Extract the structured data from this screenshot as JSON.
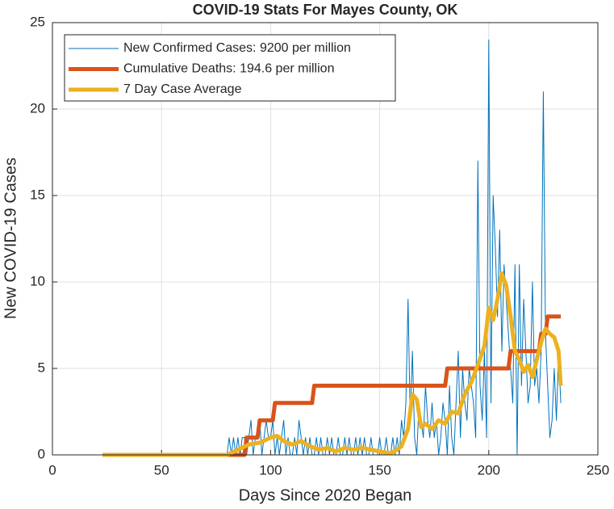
{
  "chart_data": {
    "type": "line",
    "title": "COVID-19 Stats For Mayes County, OK",
    "xlabel": "Days Since 2020 Began",
    "ylabel": "New COVID-19 Cases",
    "xlim": [
      0,
      250
    ],
    "ylim": [
      0,
      25
    ],
    "xticks": [
      0,
      50,
      100,
      150,
      200,
      250
    ],
    "yticks": [
      0,
      5,
      10,
      15,
      20,
      25
    ],
    "grid": true,
    "legend": "upper left",
    "series": [
      {
        "name": "New Confirmed Cases: 9200 per million",
        "color": "#0072BD",
        "x": [
          23,
          80,
          81,
          82,
          83,
          84,
          85,
          86,
          87,
          88,
          89,
          90,
          91,
          92,
          93,
          94,
          95,
          96,
          97,
          98,
          99,
          100,
          101,
          102,
          103,
          104,
          105,
          106,
          107,
          108,
          109,
          110,
          111,
          112,
          113,
          114,
          115,
          116,
          117,
          118,
          119,
          120,
          121,
          122,
          123,
          124,
          125,
          126,
          127,
          128,
          129,
          130,
          131,
          132,
          133,
          134,
          135,
          136,
          137,
          138,
          139,
          140,
          141,
          142,
          143,
          144,
          145,
          146,
          147,
          148,
          149,
          150,
          151,
          152,
          153,
          154,
          155,
          156,
          157,
          158,
          159,
          160,
          161,
          162,
          163,
          164,
          165,
          166,
          167,
          168,
          169,
          170,
          171,
          172,
          173,
          174,
          175,
          176,
          177,
          178,
          179,
          180,
          181,
          182,
          183,
          184,
          185,
          186,
          187,
          188,
          189,
          190,
          191,
          192,
          193,
          194,
          195,
          196,
          197,
          198,
          199,
          200,
          201,
          202,
          203,
          204,
          205,
          206,
          207,
          208,
          209,
          210,
          211,
          212,
          213,
          214,
          215,
          216,
          217,
          218,
          219,
          220,
          221,
          222,
          223,
          224,
          225,
          226,
          227,
          228,
          229,
          230,
          231,
          232,
          233
        ],
        "values": [
          0,
          0,
          1,
          0,
          1,
          0,
          1,
          0,
          1,
          1,
          0,
          1,
          2,
          0,
          1,
          1,
          2,
          0,
          1,
          2,
          1,
          1,
          2,
          0,
          1,
          0,
          1,
          2,
          0,
          1,
          0,
          0,
          1,
          0,
          2,
          1,
          0,
          1,
          0,
          1,
          0,
          0,
          1,
          0,
          1,
          0,
          0,
          1,
          0,
          1,
          0,
          0,
          1,
          0,
          0,
          1,
          0,
          1,
          0,
          0,
          1,
          0,
          1,
          0,
          1,
          0,
          0,
          1,
          0,
          0,
          0,
          1,
          0,
          0,
          1,
          0,
          0,
          1,
          0,
          1,
          0,
          2,
          1,
          3,
          9,
          2,
          6,
          1,
          0,
          3,
          2,
          1,
          4,
          2,
          1,
          3,
          1,
          2,
          0,
          1,
          3,
          2,
          0,
          4,
          1,
          0,
          3,
          6,
          1,
          5,
          3,
          2,
          5,
          4,
          3,
          1,
          17,
          4,
          2,
          6,
          1,
          24,
          3,
          15,
          12,
          8,
          13,
          6,
          11,
          9,
          7,
          5,
          3,
          11,
          0,
          11,
          4,
          9,
          6,
          3,
          4,
          10,
          4,
          5,
          3,
          6,
          21,
          7,
          4,
          1,
          2,
          5,
          2,
          6,
          3
        ]
      },
      {
        "name": "Cumulative Deaths: 194.6 per million",
        "color": "#D95319",
        "x": [
          23,
          88,
          89,
          94,
          95,
          101,
          102,
          119,
          120,
          180,
          181,
          209,
          210,
          223,
          224,
          226,
          227,
          233
        ],
        "values": [
          0,
          0,
          1,
          1,
          2,
          2,
          3,
          3,
          4,
          4,
          5,
          5,
          6,
          6,
          7,
          7,
          8,
          8
        ]
      },
      {
        "name": "7 Day Case Average",
        "color": "#EDB120",
        "x": [
          23,
          80,
          85,
          90,
          95,
          100,
          103,
          106,
          110,
          114,
          118,
          122,
          126,
          130,
          134,
          138,
          142,
          146,
          150,
          155,
          158,
          160,
          163,
          165,
          167,
          169,
          171,
          174,
          177,
          180,
          183,
          186,
          189,
          192,
          195,
          198,
          200,
          202,
          204,
          206,
          208,
          210,
          212,
          214,
          216,
          218,
          220,
          222,
          224,
          226,
          228,
          230,
          232,
          233
        ],
        "values": [
          0,
          0,
          0.3,
          0.6,
          0.7,
          1.0,
          1.1,
          0.8,
          0.6,
          0.8,
          0.5,
          0.3,
          0.4,
          0.2,
          0.4,
          0.3,
          0.4,
          0.3,
          0.2,
          0.1,
          0.3,
          0.5,
          1.5,
          3.5,
          3.2,
          1.6,
          1.8,
          1.5,
          2.0,
          1.8,
          2.5,
          2.4,
          3.5,
          4.2,
          5.2,
          6.3,
          8.5,
          7.8,
          9.0,
          10.5,
          9.8,
          8.0,
          6.0,
          5.5,
          4.8,
          5.2,
          4.5,
          5.5,
          6.5,
          7.3,
          7.0,
          6.8,
          6.0,
          4.0
        ]
      }
    ]
  }
}
